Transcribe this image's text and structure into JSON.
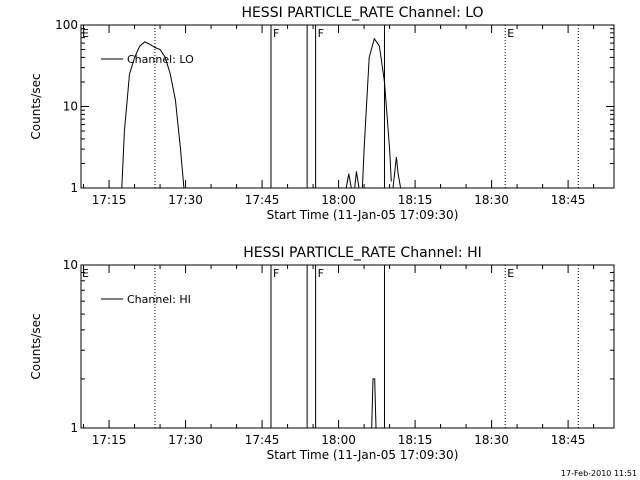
{
  "footer": {
    "date": "17-Feb-2010 11:51"
  },
  "colors": {
    "ink": "#000000",
    "background": "#ffffff"
  },
  "chart_data": [
    {
      "type": "line",
      "title": "HESSI PARTICLE_RATE Channel: LO",
      "xlabel": "Start Time (11-Jan-05 17:09:30)",
      "ylabel": "Counts/sec",
      "yscale": "log",
      "xlim": [
        "17:09:30",
        "18:54:00"
      ],
      "ylim": [
        1,
        100
      ],
      "x_ticks": [
        "17:15",
        "17:30",
        "17:45",
        "18:00",
        "18:15",
        "18:30",
        "18:45"
      ],
      "y_ticks": [
        "1",
        "10",
        "100"
      ],
      "legend": {
        "position": "top-left",
        "entries": [
          "Channel: LO"
        ]
      },
      "series": [
        {
          "name": "Channel: LO",
          "points": [
            [
              "17:17:30",
              1
            ],
            [
              "17:18:00",
              5
            ],
            [
              "17:19:00",
              25
            ],
            [
              "17:20:00",
              40
            ],
            [
              "17:21:00",
              55
            ],
            [
              "17:22:00",
              62
            ],
            [
              "17:23:00",
              58
            ],
            [
              "17:24:00",
              53
            ],
            [
              "17:25:00",
              50
            ],
            [
              "17:26:00",
              40
            ],
            [
              "17:27:00",
              25
            ],
            [
              "17:28:00",
              12
            ],
            [
              "17:29:00",
              3
            ],
            [
              "17:29:40",
              1
            ]
          ]
        },
        {
          "name": "",
          "points": [
            [
              "18:01:30",
              1
            ],
            [
              "18:02:00",
              1.5
            ],
            [
              "18:02:30",
              1
            ],
            [
              "18:03:10",
              1
            ],
            [
              "18:03:30",
              1.6
            ],
            [
              "18:04:00",
              1
            ],
            [
              "18:04:40",
              1
            ],
            [
              "18:05:00",
              3
            ],
            [
              "18:06:00",
              40
            ],
            [
              "18:07:00",
              68
            ],
            [
              "18:08:00",
              55
            ],
            [
              "18:09:00",
              20
            ],
            [
              "18:10:00",
              3
            ],
            [
              "18:10:20",
              1.2
            ]
          ]
        },
        {
          "name": "",
          "points": [
            [
              "18:10:40",
              1
            ],
            [
              "18:11:20",
              2.4
            ],
            [
              "18:11:40",
              1.5
            ],
            [
              "18:12:10",
              1
            ]
          ]
        }
      ],
      "vlines": [
        {
          "x": "17:46:45",
          "label": "F",
          "style": "solid"
        },
        {
          "x": "17:53:50",
          "label": "",
          "style": "solid"
        },
        {
          "x": "17:55:30",
          "label": "F",
          "style": "solid"
        },
        {
          "x": "18:09:00",
          "label": "",
          "style": "solid"
        },
        {
          "x": "17:24:00",
          "label": "",
          "style": "dotted"
        },
        {
          "x": "18:32:40",
          "label": "E",
          "style": "dotted"
        },
        {
          "x": "18:47:00",
          "label": "",
          "style": "dotted"
        }
      ],
      "edge_label": "E"
    },
    {
      "type": "line",
      "title": "HESSI PARTICLE_RATE Channel: HI",
      "xlabel": "Start Time (11-Jan-05 17:09:30)",
      "ylabel": "Counts/sec",
      "yscale": "log",
      "xlim": [
        "17:09:30",
        "18:54:00"
      ],
      "ylim": [
        1,
        10
      ],
      "x_ticks": [
        "17:15",
        "17:30",
        "17:45",
        "18:00",
        "18:15",
        "18:30",
        "18:45"
      ],
      "y_ticks": [
        "1",
        "10"
      ],
      "legend": {
        "position": "top-left",
        "entries": [
          "Channel: HI"
        ]
      },
      "series": [
        {
          "name": "Channel: HI",
          "points": [
            [
              "18:06:30",
              1
            ],
            [
              "18:06:45",
              2
            ],
            [
              "18:07:05",
              2
            ],
            [
              "18:07:20",
              1
            ]
          ]
        }
      ],
      "vlines": [
        {
          "x": "17:46:45",
          "label": "F",
          "style": "solid"
        },
        {
          "x": "17:53:50",
          "label": "",
          "style": "solid"
        },
        {
          "x": "17:55:30",
          "label": "F",
          "style": "solid"
        },
        {
          "x": "18:09:00",
          "label": "",
          "style": "solid"
        },
        {
          "x": "17:24:00",
          "label": "",
          "style": "dotted"
        },
        {
          "x": "18:32:40",
          "label": "E",
          "style": "dotted"
        },
        {
          "x": "18:47:00",
          "label": "",
          "style": "dotted"
        }
      ],
      "edge_label": "E"
    }
  ]
}
